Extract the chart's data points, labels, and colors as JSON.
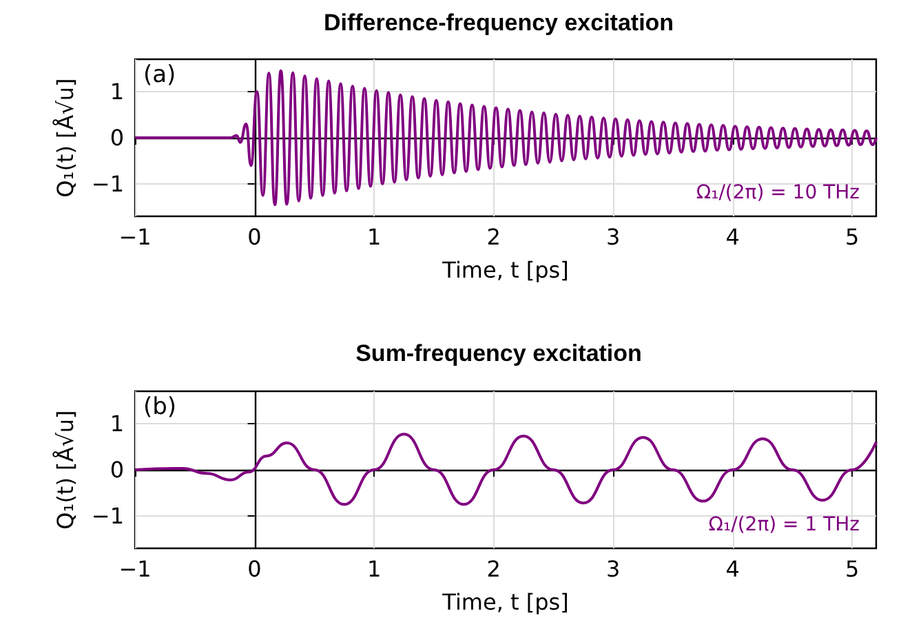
{
  "chart_data": [
    {
      "type": "line",
      "title": "Difference-frequency excitation",
      "xlabel": "Time, t [ps]",
      "ylabel": "Q₁(t) [Å√u]",
      "annotations": [
        "(a)",
        "Ω₁/(2π) = 10 THz"
      ],
      "xlim": [
        -1,
        5.2
      ],
      "xticks": [
        -1,
        0,
        1,
        2,
        3,
        4,
        5
      ],
      "ylim": [
        -1.7,
        1.7
      ],
      "yticks": [
        -1,
        0,
        1
      ],
      "grid": true,
      "series": [
        {
          "color": "#800080",
          "x": [
            -1,
            -0.2,
            -0.15,
            -0.12,
            -0.07,
            -0.03,
            0.02,
            0.07,
            0.12,
            0.17,
            0.22,
            0.27,
            0.32,
            0.37,
            0.42,
            0.47,
            0.52,
            0.57,
            0.62,
            0.67,
            0.72,
            0.77,
            0.82,
            0.87,
            0.92,
            0.97,
            1.02,
            1.07,
            1.12,
            1.17,
            1.22,
            1.27,
            1.32,
            1.37,
            1.42,
            1.47,
            1.52,
            1.57,
            1.62,
            1.67,
            1.72,
            1.77,
            1.82,
            1.87,
            1.92,
            1.97,
            2.02,
            2.07,
            2.12,
            2.17,
            2.22,
            2.27,
            2.32,
            2.37,
            2.42,
            2.47,
            2.52,
            2.57,
            2.62,
            2.67,
            2.72,
            2.77,
            2.82,
            2.87,
            2.92,
            2.97,
            3.02,
            3.07,
            3.12,
            3.17,
            3.22,
            3.27,
            3.32,
            3.37,
            3.42,
            3.47,
            3.52,
            3.57,
            3.62,
            3.67,
            3.72,
            3.77,
            3.82,
            3.87,
            3.92,
            3.97,
            4.02,
            4.07,
            4.12,
            4.17,
            4.22,
            4.27,
            4.32,
            4.37,
            4.42,
            4.47,
            4.52,
            4.57,
            4.62,
            4.67,
            4.72,
            4.77,
            4.82,
            4.87,
            4.92,
            4.97,
            5.02,
            5.07,
            5.12,
            5.17,
            5.2
          ],
          "values": [
            0,
            0,
            0.05,
            -0.1,
            0.3,
            -0.6,
            1.0,
            -1.25,
            1.4,
            -1.45,
            1.45,
            -1.44,
            1.41,
            -1.37,
            1.34,
            -1.31,
            1.28,
            -1.25,
            1.23,
            -1.2,
            1.17,
            -1.15,
            1.12,
            -1.1,
            1.07,
            -1.05,
            1.02,
            -1.0,
            0.98,
            -0.96,
            0.93,
            -0.91,
            0.89,
            -0.87,
            0.85,
            -0.83,
            0.81,
            -0.8,
            0.78,
            -0.76,
            0.74,
            -0.73,
            0.71,
            -0.69,
            0.68,
            -0.66,
            0.65,
            -0.63,
            0.62,
            -0.6,
            0.59,
            -0.58,
            0.56,
            -0.55,
            0.54,
            -0.53,
            0.51,
            -0.5,
            0.49,
            -0.48,
            0.47,
            -0.46,
            0.45,
            -0.44,
            0.43,
            -0.42,
            0.41,
            -0.4,
            0.39,
            -0.38,
            0.37,
            -0.36,
            0.35,
            -0.35,
            0.34,
            -0.33,
            0.32,
            -0.31,
            0.31,
            -0.3,
            0.29,
            -0.29,
            0.28,
            -0.27,
            0.27,
            -0.26,
            0.25,
            -0.25,
            0.24,
            -0.24,
            0.23,
            -0.23,
            0.22,
            -0.22,
            0.21,
            -0.21,
            0.2,
            -0.2,
            0.19,
            -0.19,
            0.18,
            -0.18,
            0.17,
            -0.17,
            0.17,
            -0.16,
            0.16,
            -0.15,
            0.15,
            -0.15,
            0
          ]
        }
      ]
    },
    {
      "type": "line",
      "title": "Sum-frequency excitation",
      "xlabel": "Time, t [ps]",
      "ylabel": "Q₁(t) [Å√u]",
      "annotations": [
        "(b)",
        "Ω₁/(2π) = 1 THz"
      ],
      "xlim": [
        -1,
        5.2
      ],
      "xticks": [
        -1,
        0,
        1,
        2,
        3,
        4,
        5
      ],
      "ylim": [
        -1.7,
        1.7
      ],
      "yticks": [
        -1,
        0,
        1
      ],
      "grid": true,
      "series": [
        {
          "color": "#800080",
          "x": [
            -1,
            -0.6,
            -0.4,
            -0.2,
            -0.05,
            0.1,
            0.27,
            0.5,
            0.75,
            1.0,
            1.25,
            1.5,
            1.75,
            2.0,
            2.25,
            2.5,
            2.75,
            3.0,
            3.25,
            3.5,
            3.75,
            4.0,
            4.25,
            4.5,
            4.75,
            5.0,
            5.2
          ],
          "values": [
            0,
            0.03,
            -0.08,
            -0.22,
            -0.05,
            0.3,
            0.58,
            0,
            -0.75,
            0,
            0.77,
            0,
            -0.75,
            0,
            0.73,
            0,
            -0.72,
            0,
            0.7,
            0,
            -0.68,
            0,
            0.67,
            0,
            -0.66,
            0,
            0.6
          ]
        }
      ]
    }
  ]
}
